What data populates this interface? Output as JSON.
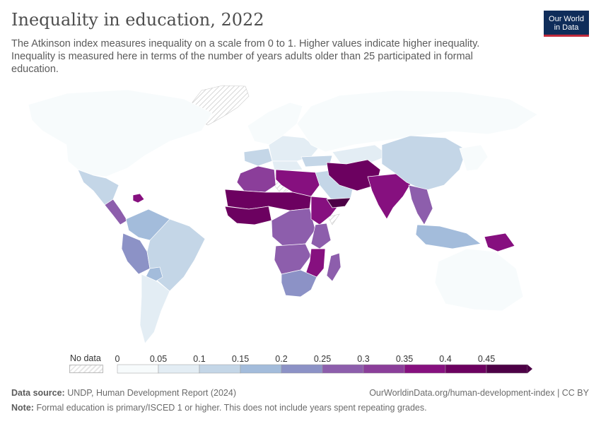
{
  "header": {
    "title": "Inequality in education, 2022",
    "subtitle": "The Atkinson index measures inequality on a scale from 0 to 1. Higher values indicate higher inequality. Inequality is measured here in terms of the number of years adults older than 25 participated in formal education."
  },
  "logo": {
    "line1": "Our World",
    "line2": "in Data"
  },
  "legend": {
    "no_data_label": "No data",
    "ticks": [
      "0",
      "0.05",
      "0.1",
      "0.15",
      "0.2",
      "0.25",
      "0.3",
      "0.35",
      "0.4",
      "0.45"
    ],
    "colors": [
      "#f7fbfc",
      "#e3edf4",
      "#c4d6e7",
      "#a3bcdb",
      "#8c92c6",
      "#8d5eac",
      "#8b3e9a",
      "#86107f",
      "#6c0160",
      "#4d0046"
    ]
  },
  "footer": {
    "source_label": "Data source:",
    "source_text": "UNDP, Human Development Report (2024)",
    "url": "OurWorldinData.org/human-development-index | CC BY",
    "note_label": "Note:",
    "note_text": "Formal education is primary/ISCED 1 or higher. This does not include years spent repeating grades."
  },
  "map_data": {
    "region_levels": {
      "north-america": 0,
      "mexico": 2,
      "central-america": 5,
      "caribbean": 7,
      "colombia-venezuela": 3,
      "andes": 4,
      "brazil": 2,
      "paraguay": 3,
      "southern-cone": 1,
      "iberia-france": 2,
      "northern-europe": 0,
      "eastern-europe": 1,
      "russia": 0,
      "mediterranean-europe": 1,
      "turkey": 2,
      "central-asia": 1,
      "maghreb": 6,
      "egypt-libya": 7,
      "sahel": 8,
      "west-africa": 8,
      "central-africa": 5,
      "horn-of-africa": 7,
      "east-africa": 5,
      "angola": 5,
      "mozambique-malawi": 7,
      "southern-africa": 4,
      "madagascar": 5,
      "arabia": 2,
      "yemen": 9,
      "iran-pakistan-afghanistan": 8,
      "india": 7,
      "china": 2,
      "east-asia": 0,
      "mainland-southeast-asia": 5,
      "indonesia-philippines": 3,
      "papua-new-guinea": 7,
      "australia-nz": 0
    }
  }
}
